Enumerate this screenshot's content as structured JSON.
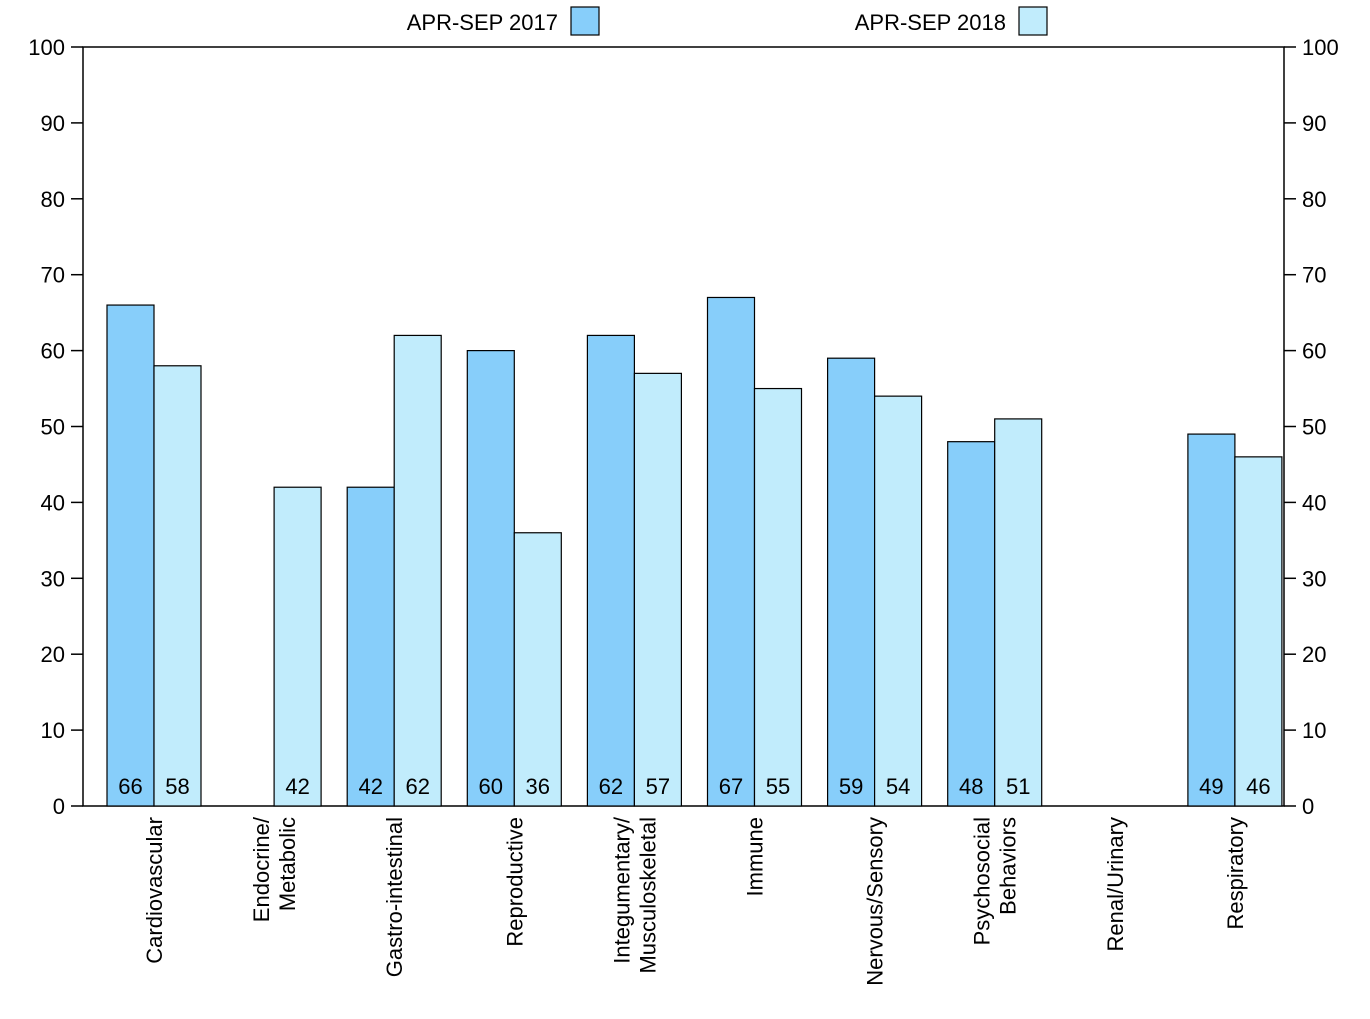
{
  "chart_data": {
    "type": "bar",
    "title": "",
    "xlabel": "",
    "ylabel": "",
    "ylim": [
      0,
      100
    ],
    "yticks": [
      0,
      10,
      20,
      30,
      40,
      50,
      60,
      70,
      80,
      90,
      100
    ],
    "right_axis_ticks": true,
    "grid": false,
    "legend_position": "top",
    "categories": [
      [
        "Cardiovascular"
      ],
      [
        "Endocrine/",
        "Metabolic"
      ],
      [
        "Gastro-intestinal"
      ],
      [
        "Reproductive"
      ],
      [
        "Integumentary/",
        "Musculoskeletal"
      ],
      [
        "Immune"
      ],
      [
        "Nervous/Sensory"
      ],
      [
        "Psychosocial",
        "Behaviors"
      ],
      [
        "Renal/Urinary"
      ],
      [
        "Respiratory"
      ]
    ],
    "series": [
      {
        "name": "APR-SEP 2017",
        "color": "#87cefa",
        "values": [
          66,
          0,
          42,
          60,
          62,
          67,
          59,
          48,
          0,
          49
        ],
        "labels": [
          "66",
          "",
          "42",
          "60",
          "62",
          "67",
          "59",
          "48",
          "",
          "49"
        ]
      },
      {
        "name": "APR-SEP 2018",
        "color": "#c1ecfc",
        "values": [
          58,
          42,
          62,
          36,
          57,
          55,
          54,
          51,
          0,
          46
        ],
        "labels": [
          "58",
          "42",
          "62",
          "36",
          "57",
          "55",
          "54",
          "51",
          "",
          "46"
        ]
      }
    ]
  }
}
